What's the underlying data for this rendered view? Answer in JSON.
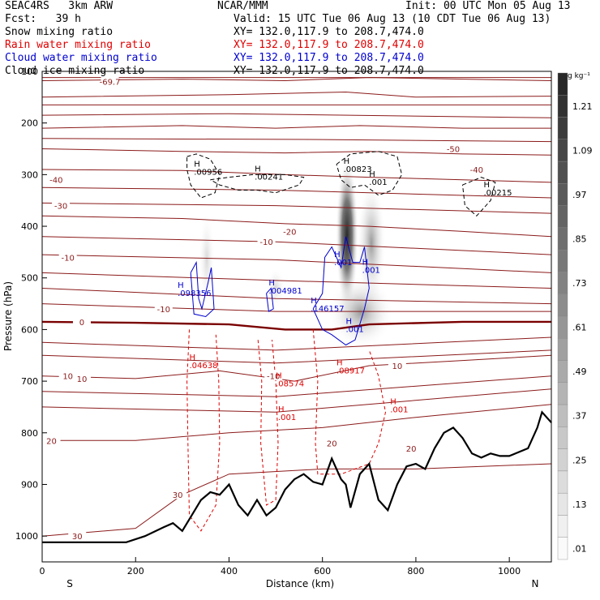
{
  "header": {
    "model": "SEAC4RS   3km ARW",
    "center": "NCAR/MMM",
    "init": "Init: 00 UTC Mon 05 Aug 13",
    "fcst": "Fcst:   39 h",
    "valid": "Valid: 15 UTC Tue 06 Aug 13 (10 CDT Tue 06 Aug 13)",
    "fields": [
      {
        "name": "Snow mixing ratio",
        "xy": "XY= 132.0,117.9 to 208.7,474.0",
        "color": "#000000"
      },
      {
        "name": "Rain water mixing ratio",
        "xy": "XY= 132.0,117.9 to 208.7,474.0",
        "color": "#e00000"
      },
      {
        "name": "Cloud water mixing ratio",
        "xy": "XY= 132.0,117.9 to 208.7,474.0",
        "color": "#0000d0"
      },
      {
        "name": "Cloud ice mixing ratio",
        "xy": "XY= 132.0,117.9 to 208.7,474.0",
        "color": "#000000"
      }
    ]
  },
  "colorbar": {
    "unit": "g kg⁻¹",
    "labels": [
      "1.21",
      "1.09",
      ".97",
      ".85",
      ".73",
      ".61",
      ".49",
      ".37",
      ".25",
      ".13",
      ".01"
    ]
  },
  "chart_data": {
    "type": "cross-section",
    "xlabel": "Distance (km)",
    "ylabel": "Pressure (hPa)",
    "xlim": [
      0,
      1090
    ],
    "ylim": [
      1050,
      100
    ],
    "x_ticks": [
      "0",
      "200",
      "400",
      "600",
      "800",
      "1000"
    ],
    "y_ticks": [
      "100",
      "200",
      "300",
      "400",
      "500",
      "600",
      "700",
      "800",
      "900",
      "1000"
    ],
    "end_labels": {
      "left": "S",
      "right": "N"
    },
    "temperature_isotherms": [
      -70,
      -60,
      -50,
      -40,
      -30,
      -20,
      -10,
      0,
      10,
      20,
      30
    ],
    "isotherm_labels": [
      {
        "x": 145,
        "p": 120,
        "t": "-69.7"
      },
      {
        "x": 30,
        "p": 310,
        "t": "-40"
      },
      {
        "x": 40,
        "p": 360,
        "t": "-30"
      },
      {
        "x": 55,
        "p": 460,
        "t": "-10"
      },
      {
        "x": 85,
        "p": 585,
        "t": "0"
      },
      {
        "x": 55,
        "p": 690,
        "t": "10"
      },
      {
        "x": 85,
        "p": 695,
        "t": "10"
      },
      {
        "x": 20,
        "p": 815,
        "t": "20"
      },
      {
        "x": 75,
        "p": 1000,
        "t": "30"
      },
      {
        "x": 290,
        "p": 920,
        "t": "30"
      },
      {
        "x": 530,
        "p": 410,
        "t": "-20"
      },
      {
        "x": 880,
        "p": 250,
        "t": "-50"
      },
      {
        "x": 930,
        "p": 290,
        "t": "-40"
      },
      {
        "x": 620,
        "p": 820,
        "t": "20"
      },
      {
        "x": 790,
        "p": 830,
        "t": "20"
      },
      {
        "x": 760,
        "p": 670,
        "t": "10"
      },
      {
        "x": 480,
        "p": 430,
        "t": "-10"
      },
      {
        "x": 260,
        "p": 560,
        "t": "-10"
      },
      {
        "x": 495,
        "p": 690,
        "t": "-10"
      }
    ],
    "terrain_p": [
      [
        0,
        1012
      ],
      [
        100,
        1012
      ],
      [
        180,
        1012
      ],
      [
        220,
        1000
      ],
      [
        260,
        983
      ],
      [
        280,
        975
      ],
      [
        300,
        990
      ],
      [
        320,
        960
      ],
      [
        340,
        930
      ],
      [
        360,
        915
      ],
      [
        380,
        920
      ],
      [
        400,
        900
      ],
      [
        420,
        940
      ],
      [
        440,
        960
      ],
      [
        460,
        930
      ],
      [
        480,
        960
      ],
      [
        500,
        945
      ],
      [
        520,
        910
      ],
      [
        540,
        890
      ],
      [
        560,
        880
      ],
      [
        580,
        895
      ],
      [
        600,
        900
      ],
      [
        620,
        850
      ],
      [
        640,
        890
      ],
      [
        650,
        900
      ],
      [
        660,
        945
      ],
      [
        680,
        880
      ],
      [
        700,
        860
      ],
      [
        720,
        930
      ],
      [
        740,
        950
      ],
      [
        760,
        900
      ],
      [
        780,
        865
      ],
      [
        800,
        860
      ],
      [
        820,
        870
      ],
      [
        840,
        830
      ],
      [
        860,
        800
      ],
      [
        880,
        790
      ],
      [
        900,
        810
      ],
      [
        920,
        840
      ],
      [
        940,
        848
      ],
      [
        960,
        840
      ],
      [
        980,
        845
      ],
      [
        1000,
        845
      ],
      [
        1040,
        830
      ],
      [
        1060,
        790
      ],
      [
        1070,
        760
      ],
      [
        1080,
        770
      ],
      [
        1090,
        780
      ]
    ],
    "maxima": [
      {
        "field": "snow",
        "x": 325,
        "p": 300,
        "v": ".00956"
      },
      {
        "field": "snow",
        "x": 455,
        "p": 310,
        "v": ".00241"
      },
      {
        "field": "snow",
        "x": 645,
        "p": 295,
        "v": ".00823"
      },
      {
        "field": "snow",
        "x": 945,
        "p": 340,
        "v": ".00215"
      },
      {
        "field": "snow",
        "x": 700,
        "p": 320,
        "v": ".001"
      },
      {
        "field": "cloud",
        "x": 290,
        "p": 535,
        "v": ".098356"
      },
      {
        "field": "cloud",
        "x": 485,
        "p": 530,
        "v": ".004981"
      },
      {
        "field": "cloud",
        "x": 575,
        "p": 565,
        "v": ".146157"
      },
      {
        "field": "cloud",
        "x": 625,
        "p": 475,
        "v": ".001"
      },
      {
        "field": "cloud",
        "x": 685,
        "p": 490,
        "v": ".001"
      },
      {
        "field": "cloud",
        "x": 650,
        "p": 605,
        "v": ".001"
      },
      {
        "field": "rain",
        "x": 315,
        "p": 675,
        "v": ".04638"
      },
      {
        "field": "rain",
        "x": 500,
        "p": 710,
        "v": ".08574"
      },
      {
        "field": "rain",
        "x": 630,
        "p": 685,
        "v": ".08917"
      },
      {
        "field": "rain",
        "x": 745,
        "p": 760,
        "v": ".001"
      },
      {
        "field": "rain",
        "x": 505,
        "p": 775,
        "v": ".001"
      }
    ]
  }
}
